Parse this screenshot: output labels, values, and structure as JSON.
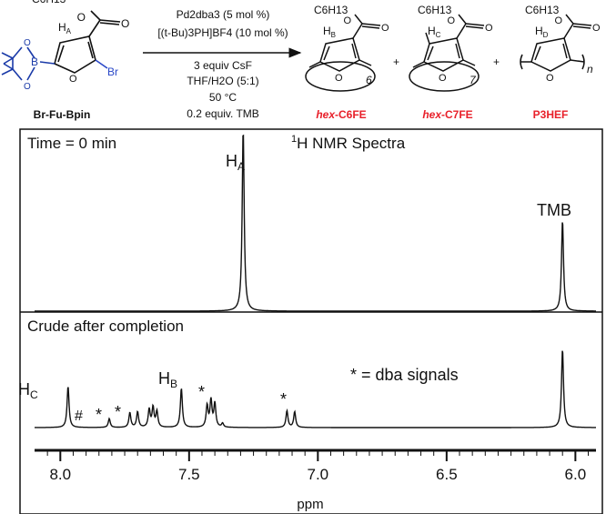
{
  "scheme": {
    "reagent_name": "Br-Fu-Bpin",
    "substituent": "C6H13",
    "atom_labels": {
      "br": "Br",
      "b": "B",
      "o": "O",
      "ha": "H",
      "ha_sub": "A",
      "hb": "H",
      "hb_sub": "B",
      "hc": "H",
      "hc_sub": "C",
      "hd": "H",
      "hd_sub": "D"
    },
    "conditions": {
      "catalyst": "Pd2dba3 (5 mol %)",
      "ligand": "[(t-Bu)3PH]BF4 (10 mol %)",
      "base": "3 equiv CsF",
      "solvent": "THF/H2O (5:1)",
      "temperature": "50 °C",
      "standard": "0.2 equiv. TMB"
    },
    "products": [
      {
        "label_prefix": "hex",
        "label_rest": "-C6FE",
        "subscript": "6"
      },
      {
        "label_prefix": "hex",
        "label_rest": "-C7FE",
        "subscript": "7"
      },
      {
        "label_prefix": "",
        "label_rest": "P3HEF",
        "subscript": "n"
      }
    ],
    "plus": "+",
    "colors": {
      "boron_ring": "#1a3aa8",
      "bromine": "#2a48c8",
      "highlight": "#e8202a"
    }
  },
  "spectra": {
    "title": "1H NMR Spectra",
    "title_sup": "1",
    "title_rest": "H NMR Spectra",
    "panel_top_label": "Time = 0 min",
    "panel_bottom_label": "Crude after completion",
    "peak_labels": {
      "ha": "H",
      "ha_sub": "A",
      "tmb": "TMB",
      "hc": "H",
      "hc_sub": "C",
      "hb": "H",
      "hb_sub": "B",
      "hash": "#",
      "star": "*"
    },
    "legend": "* = dba signals",
    "xlabel": "ppm",
    "xlim": [
      8.1,
      5.92
    ],
    "ticks": [
      "8.0",
      "7.5",
      "7.0",
      "6.5",
      "6.0"
    ],
    "tick_values": [
      8.0,
      7.5,
      7.0,
      6.5,
      6.0
    ],
    "top_peaks": [
      {
        "ppm": 7.29,
        "height": 1.0
      },
      {
        "ppm": 6.05,
        "height": 0.5
      }
    ],
    "bottom_peaks": [
      {
        "ppm": 7.97,
        "height": 0.42
      },
      {
        "ppm": 7.81,
        "height": 0.09
      },
      {
        "ppm": 7.73,
        "height": 0.15
      },
      {
        "ppm": 7.7,
        "height": 0.16
      },
      {
        "ppm": 7.655,
        "height": 0.18
      },
      {
        "ppm": 7.64,
        "height": 0.2
      },
      {
        "ppm": 7.625,
        "height": 0.16
      },
      {
        "ppm": 7.53,
        "height": 0.4
      },
      {
        "ppm": 7.43,
        "height": 0.22
      },
      {
        "ppm": 7.415,
        "height": 0.27
      },
      {
        "ppm": 7.4,
        "height": 0.24
      },
      {
        "ppm": 7.37,
        "height": 0.04
      },
      {
        "ppm": 7.12,
        "height": 0.17
      },
      {
        "ppm": 7.09,
        "height": 0.16
      },
      {
        "ppm": 6.05,
        "height": 0.8
      }
    ]
  }
}
